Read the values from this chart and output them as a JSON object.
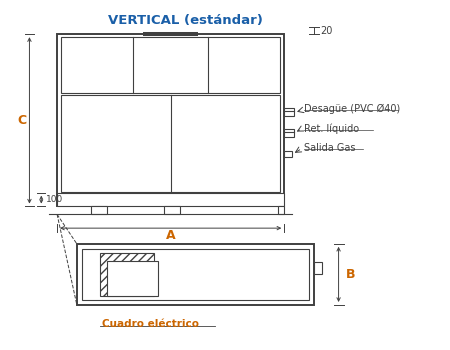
{
  "title": "VERTICAL (estándar)",
  "title_color": "#1a5fa8",
  "bg_color": "#ffffff",
  "line_color": "#404040",
  "text_color": "#404040",
  "label_color": "#cc6600",
  "annotation_color": "#404040",
  "dim_20": "20",
  "dim_100": "100",
  "dim_A": "A",
  "dim_B": "B",
  "dim_C": "C",
  "label_desague": "Desagüe (PVC Ø40)",
  "label_ret": "Ret. líquido",
  "label_gas": "Salida Gas",
  "label_cuadro": "Cuadro eléctrico"
}
